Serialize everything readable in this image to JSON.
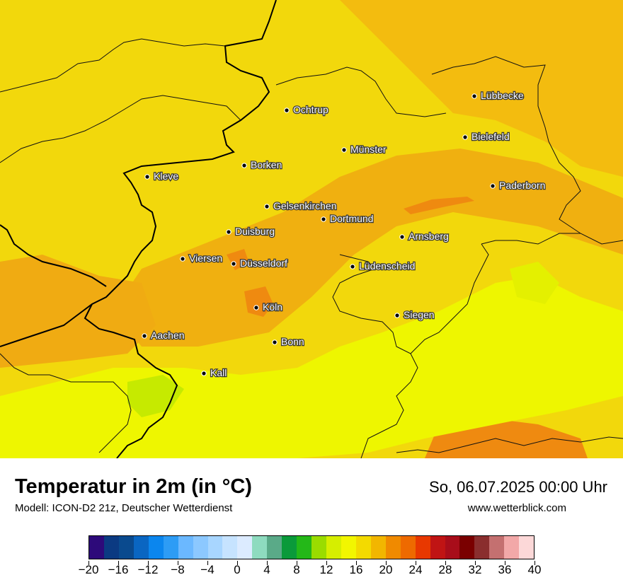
{
  "header": {
    "title": "Temperatur in 2m (in °C)",
    "subtitle": "Modell: ICON-D2 21z, Deutscher Wetterdienst",
    "datetime": "So, 06.07.2025 00:00 Uhr",
    "website": "www.wetterblick.com"
  },
  "cities": [
    {
      "name": "Lübbecke"
    },
    {
      "name": "Ochtrup"
    },
    {
      "name": "Bielefeld"
    },
    {
      "name": "Münster"
    },
    {
      "name": "Borken"
    },
    {
      "name": "Kleve"
    },
    {
      "name": "Paderborn"
    },
    {
      "name": "Gelsenkirchen"
    },
    {
      "name": "Dortmund"
    },
    {
      "name": "Duisburg"
    },
    {
      "name": "Arnsberg"
    },
    {
      "name": "Viersen"
    },
    {
      "name": "Düsseldorf"
    },
    {
      "name": "Lüdenscheid"
    },
    {
      "name": "Köln"
    },
    {
      "name": "Siegen"
    },
    {
      "name": "Aachen"
    },
    {
      "name": "Bonn"
    },
    {
      "name": "Kall"
    }
  ],
  "legend": {
    "ticks": [
      "−20",
      "−16",
      "−12",
      "−8",
      "−4",
      "0",
      "4",
      "8",
      "12",
      "16",
      "20",
      "24",
      "28",
      "32",
      "36",
      "40"
    ],
    "colors": [
      "#2d0a7a",
      "#0b3a82",
      "#0a4a8e",
      "#0a66c2",
      "#0b86ee",
      "#2d9cf5",
      "#6bb8ff",
      "#8cc8ff",
      "#a8d6ff",
      "#c6e3ff",
      "#dcebff",
      "#8edbbf",
      "#5aaa88",
      "#0a9a3a",
      "#24b818",
      "#9adc00",
      "#d6ee00",
      "#f2f600",
      "#f3da00",
      "#f2b600",
      "#f08a00",
      "#ee6a00",
      "#e83800",
      "#c01414",
      "#a80d1a",
      "#7a0000",
      "#8a2e2e",
      "#c47070",
      "#f2a8a8",
      "#fcd8d8"
    ]
  }
}
